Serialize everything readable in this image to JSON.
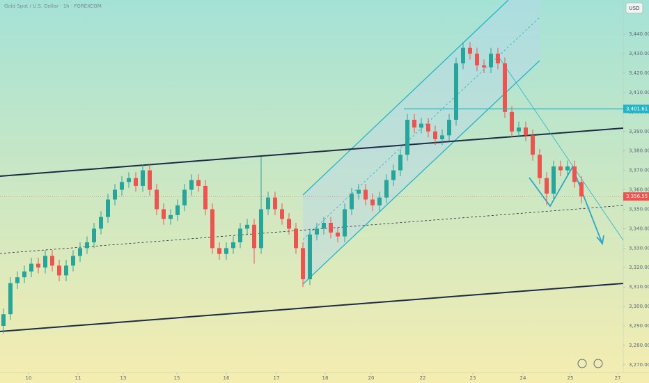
{
  "chart_data": {
    "type": "candlestick",
    "title": "Gold Spot / U.S. Dollar · 1h · FOREXCOM",
    "currency": "USD",
    "up_color": "#26a69a",
    "down_color": "#ef5350",
    "x": [
      0,
      1,
      2,
      3,
      4,
      5,
      6,
      7,
      8,
      9,
      10,
      11,
      12,
      13,
      14,
      15,
      16,
      17,
      18,
      19,
      20,
      21,
      22,
      23,
      24,
      25,
      26,
      27,
      28,
      29,
      30,
      31,
      32,
      33,
      34,
      35,
      36,
      37,
      38,
      39,
      40,
      41,
      42,
      43,
      44,
      45,
      46,
      47,
      48,
      49,
      50,
      51,
      52,
      53,
      54,
      55,
      56,
      57,
      58,
      59,
      60,
      61,
      62,
      63,
      64,
      65,
      66,
      67,
      68,
      69,
      70,
      71,
      72,
      73,
      74,
      75,
      76,
      77,
      78,
      79,
      80,
      81,
      82,
      83
    ],
    "open": [
      3290,
      3296,
      3312,
      3315,
      3318,
      3322,
      3320,
      3326,
      3321,
      3316,
      3321,
      3326,
      3330,
      3333,
      3340,
      3346,
      3355,
      3360,
      3364,
      3366,
      3362,
      3370,
      3360,
      3350,
      3345,
      3347,
      3352,
      3360,
      3365,
      3362,
      3350,
      3330,
      3327,
      3330,
      3333,
      3340,
      3342,
      3330,
      3350,
      3356,
      3350,
      3345,
      3340,
      3330,
      3314,
      3337,
      3340,
      3343,
      3338,
      3336,
      3350,
      3358,
      3360,
      3355,
      3352,
      3356,
      3365,
      3370,
      3378,
      3396,
      3392,
      3394,
      3390,
      3386,
      3388,
      3396,
      3425,
      3433,
      3430,
      3424,
      3423,
      3430,
      3425,
      3400,
      3390,
      3392,
      3388,
      3378,
      3366,
      3358,
      3372,
      3370,
      3372,
      3364
    ],
    "high": [
      3299,
      3315,
      3318,
      3321,
      3325,
      3325,
      3329,
      3329,
      3324,
      3324,
      3329,
      3333,
      3336,
      3343,
      3349,
      3358,
      3363,
      3367,
      3369,
      3369,
      3373,
      3373,
      3363,
      3353,
      3350,
      3355,
      3363,
      3368,
      3368,
      3365,
      3353,
      3333,
      3333,
      3336,
      3343,
      3345,
      3345,
      3377,
      3359,
      3359,
      3353,
      3348,
      3343,
      3333,
      3340,
      3343,
      3346,
      3346,
      3341,
      3353,
      3361,
      3363,
      3363,
      3358,
      3359,
      3368,
      3373,
      3381,
      3399,
      3399,
      3397,
      3397,
      3393,
      3391,
      3399,
      3428,
      3436,
      3436,
      3433,
      3427,
      3433,
      3433,
      3428,
      3403,
      3395,
      3395,
      3391,
      3381,
      3369,
      3375,
      3375,
      3375,
      3375,
      3367
    ],
    "low": [
      3286,
      3293,
      3309,
      3312,
      3315,
      3317,
      3317,
      3318,
      3313,
      3313,
      3318,
      3323,
      3327,
      3330,
      3337,
      3343,
      3352,
      3357,
      3361,
      3359,
      3359,
      3357,
      3347,
      3342,
      3342,
      3344,
      3349,
      3357,
      3359,
      3347,
      3327,
      3324,
      3324,
      3327,
      3330,
      3337,
      3322,
      3327,
      3347,
      3347,
      3342,
      3337,
      3327,
      3310,
      3311,
      3334,
      3337,
      3335,
      3333,
      3333,
      3347,
      3355,
      3352,
      3349,
      3349,
      3353,
      3362,
      3367,
      3375,
      3389,
      3389,
      3387,
      3383,
      3383,
      3385,
      3393,
      3422,
      3427,
      3421,
      3420,
      3420,
      3422,
      3397,
      3387,
      3387,
      3385,
      3375,
      3363,
      3352,
      3355,
      3367,
      3367,
      3361,
      3353
    ],
    "close": [
      3296,
      3312,
      3315,
      3318,
      3322,
      3320,
      3326,
      3321,
      3316,
      3321,
      3326,
      3330,
      3333,
      3340,
      3346,
      3355,
      3360,
      3364,
      3366,
      3362,
      3370,
      3360,
      3350,
      3345,
      3347,
      3352,
      3360,
      3365,
      3362,
      3350,
      3330,
      3327,
      3330,
      3333,
      3340,
      3342,
      3330,
      3350,
      3356,
      3350,
      3345,
      3340,
      3330,
      3314,
      3337,
      3340,
      3343,
      3338,
      3336,
      3350,
      3358,
      3360,
      3355,
      3352,
      3356,
      3365,
      3370,
      3378,
      3396,
      3392,
      3394,
      3390,
      3386,
      3388,
      3396,
      3425,
      3433,
      3430,
      3424,
      3423,
      3430,
      3425,
      3400,
      3390,
      3392,
      3388,
      3378,
      3366,
      3358,
      3372,
      3370,
      3372,
      3364,
      3356.55
    ],
    "xlim": [
      -0.5,
      89
    ],
    "xticks": [
      {
        "value": 3.6,
        "label": "10"
      },
      {
        "value": 10.7,
        "label": "11"
      },
      {
        "value": 17.2,
        "label": "13"
      },
      {
        "value": 24.9,
        "label": "15"
      },
      {
        "value": 32,
        "label": "16"
      },
      {
        "value": 39.2,
        "label": "17"
      },
      {
        "value": 46.2,
        "label": "18"
      },
      {
        "value": 52.8,
        "label": "20"
      },
      {
        "value": 60.2,
        "label": "22"
      },
      {
        "value": 67.4,
        "label": "23"
      },
      {
        "value": 74.6,
        "label": "24"
      },
      {
        "value": 81.4,
        "label": "25"
      },
      {
        "value": 88.2,
        "label": "27"
      }
    ],
    "ylim": [
      3266,
      3457.6
    ],
    "yticks": [
      {
        "value": 3270,
        "label": "3,270.00"
      },
      {
        "value": 3280,
        "label": "3,280.00"
      },
      {
        "value": 3290,
        "label": "3,290.00"
      },
      {
        "value": 3300,
        "label": "3,300.00"
      },
      {
        "value": 3310,
        "label": "3,310.00"
      },
      {
        "value": 3320,
        "label": "3,320.00"
      },
      {
        "value": 3330,
        "label": "3,330.00"
      },
      {
        "value": 3340,
        "label": "3,340.00"
      },
      {
        "value": 3350,
        "label": "3,350.00"
      },
      {
        "value": 3360,
        "label": "3,360.00"
      },
      {
        "value": 3370,
        "label": "3,370.00"
      },
      {
        "value": 3380,
        "label": "3,380.00"
      },
      {
        "value": 3390,
        "label": "3,390.00"
      },
      {
        "value": 3400,
        "label": "3,400.00"
      },
      {
        "value": 3410,
        "label": "3,410.00"
      },
      {
        "value": 3420,
        "label": "3,420.00"
      },
      {
        "value": 3430,
        "label": "3,430.00"
      },
      {
        "value": 3440,
        "label": "3,440.00"
      }
    ],
    "price_line": {
      "value": 3401.61,
      "label": "3,401.61",
      "color": "#22b5c8"
    },
    "last_price": {
      "value": 3356.55,
      "label": "3,356.55",
      "color": "#ef5350"
    }
  }
}
